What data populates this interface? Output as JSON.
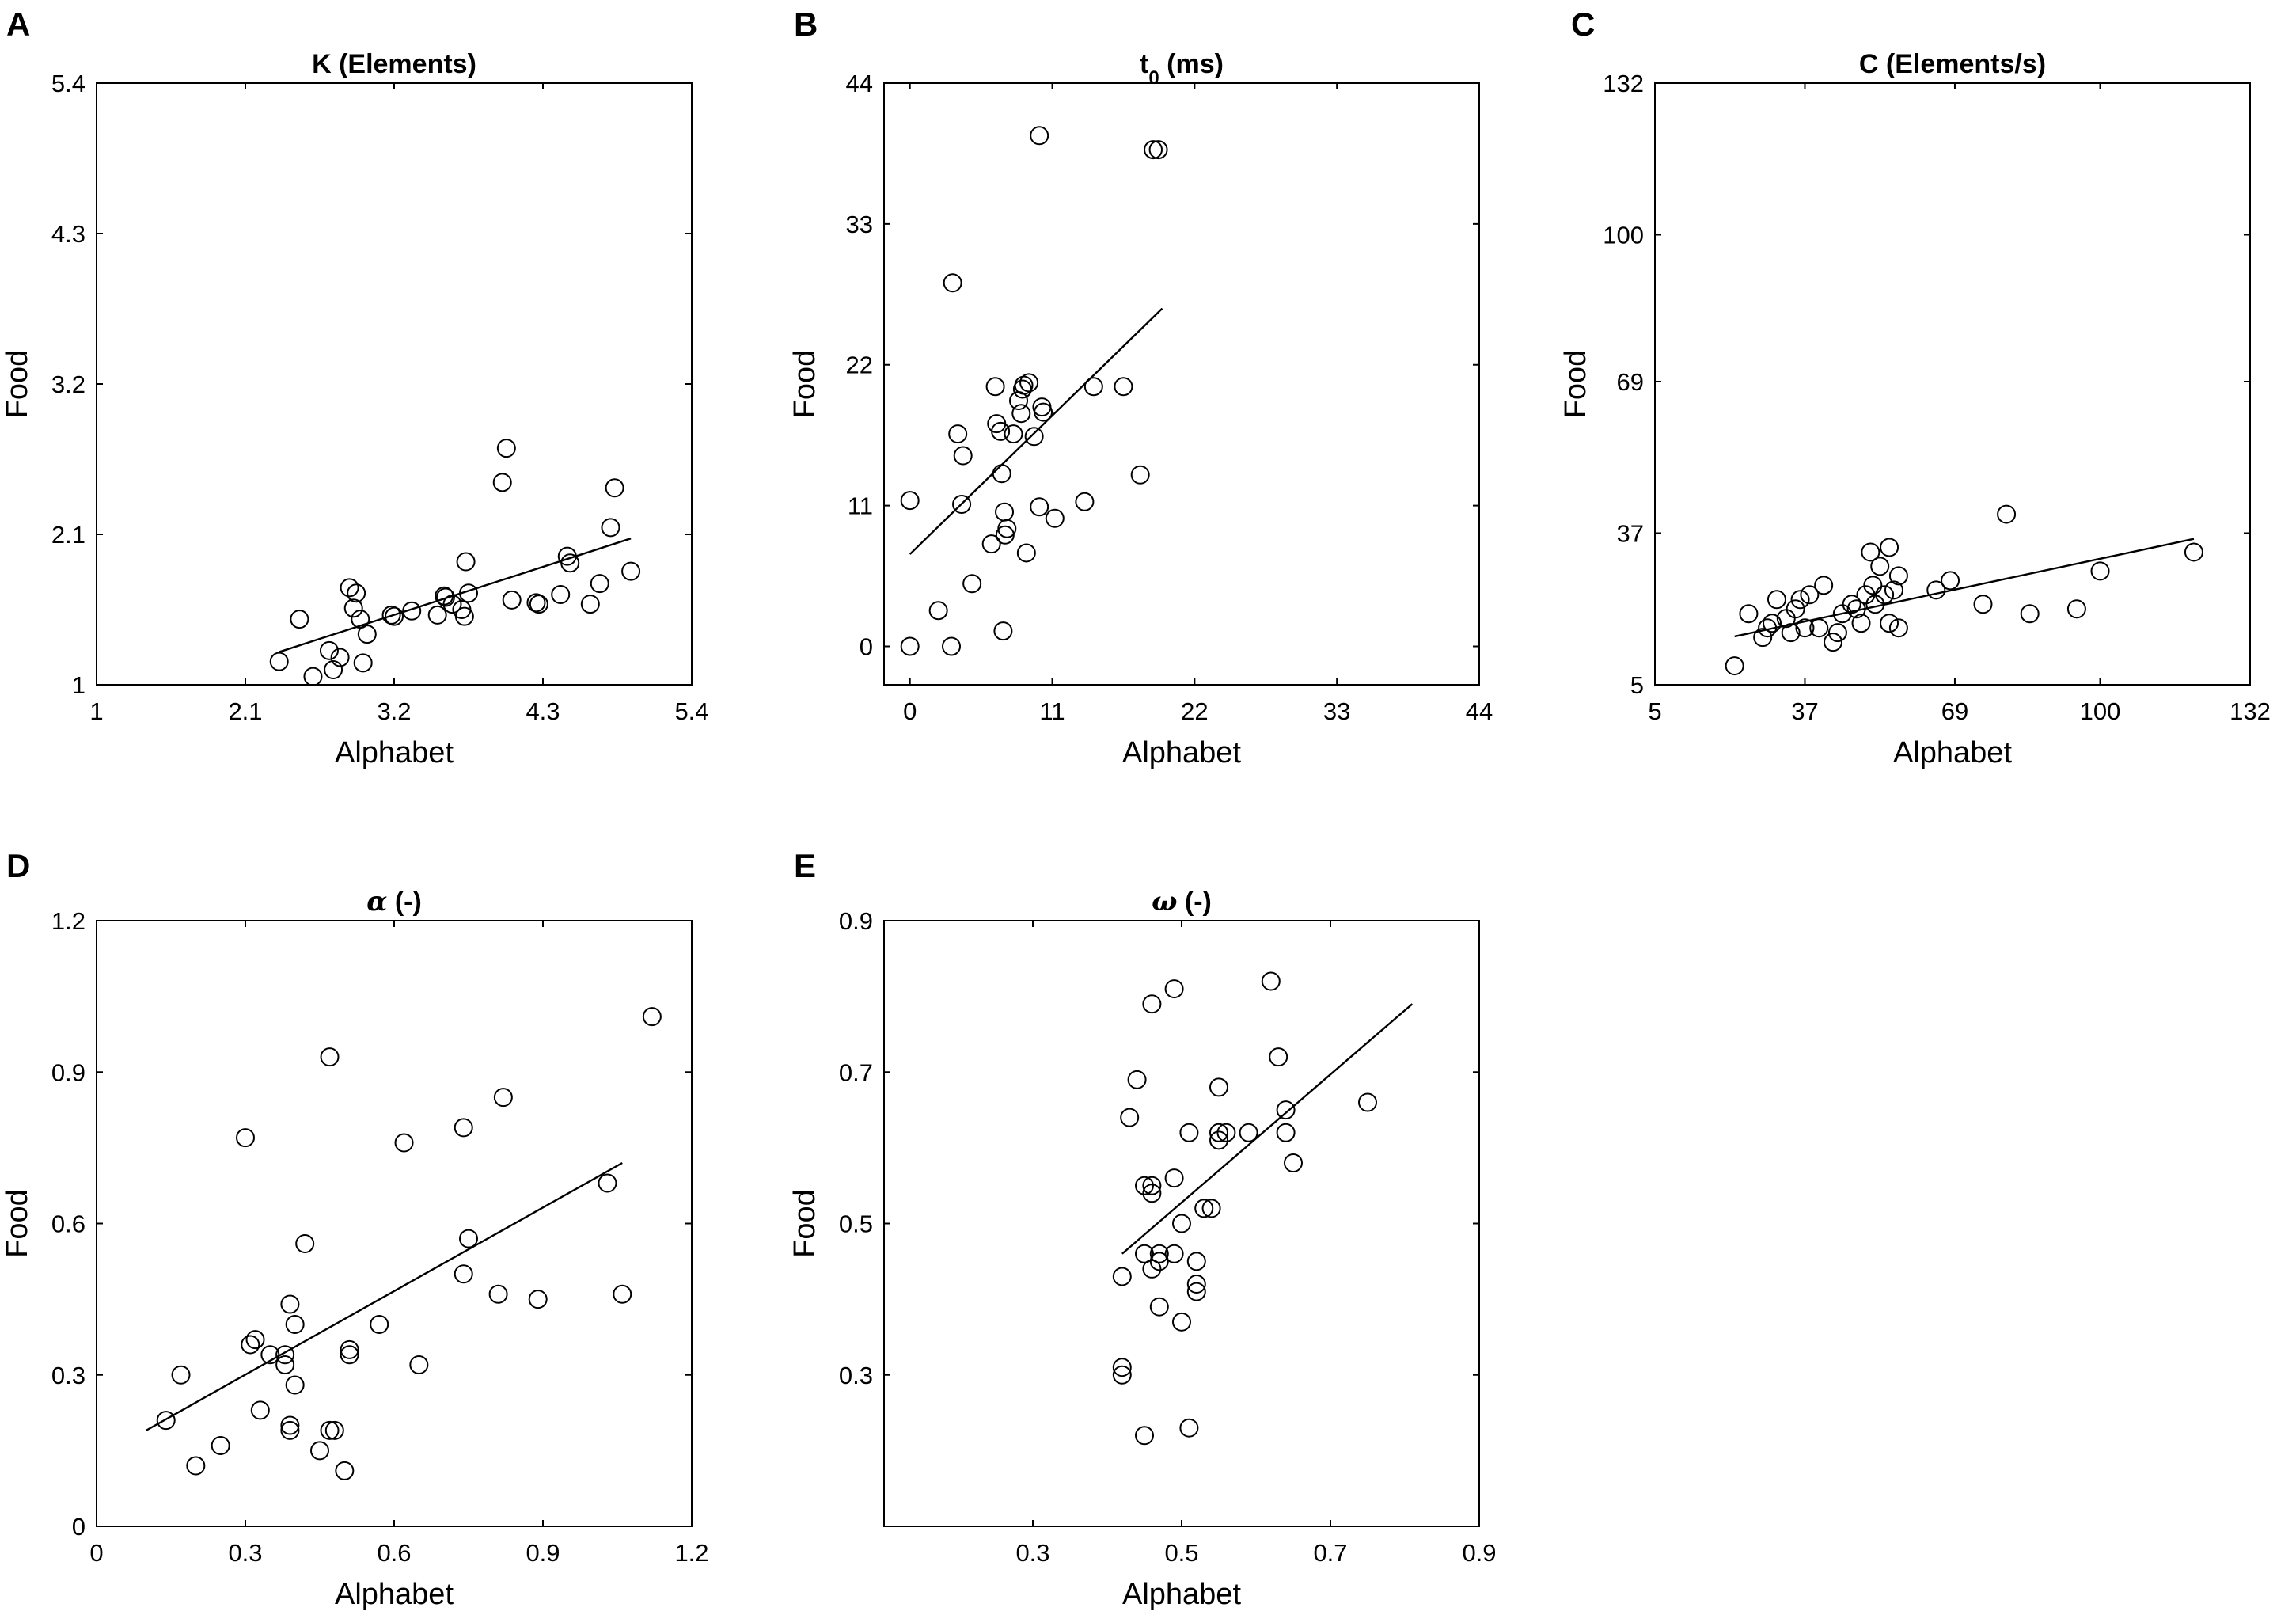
{
  "chart_data": [
    {
      "id": "A",
      "type": "scatter",
      "panel_label": "A",
      "title": "K (Elements)",
      "title_italic": false,
      "xlabel": "Alphabet",
      "ylabel": "Food",
      "xlim": [
        1,
        5.4
      ],
      "ylim": [
        1,
        5.4
      ],
      "xticks": [
        1,
        2.1,
        3.2,
        4.3,
        5.4
      ],
      "yticks": [
        1,
        2.1,
        3.2,
        4.3,
        5.4
      ],
      "xtick_labels": [
        "1",
        "2.1",
        "3.2",
        "4.3",
        "5.4"
      ],
      "ytick_labels": [
        "1",
        "2.1",
        "3.2",
        "4.3",
        "5.4"
      ],
      "fit_line": [
        [
          2.35,
          1.24
        ],
        [
          4.95,
          2.07
        ]
      ],
      "x": [
        2.35,
        2.5,
        2.6,
        2.72,
        2.75,
        2.8,
        2.87,
        2.9,
        2.92,
        2.95,
        2.97,
        3.0,
        3.18,
        3.2,
        3.33,
        3.52,
        3.57,
        3.58,
        3.63,
        3.7,
        3.72,
        3.73,
        3.75,
        4.0,
        4.03,
        4.07,
        4.25,
        4.27,
        4.43,
        4.48,
        4.5,
        4.65,
        4.72,
        4.8,
        4.83,
        4.95
      ],
      "y": [
        1.17,
        1.48,
        1.06,
        1.25,
        1.11,
        1.2,
        1.71,
        1.56,
        1.67,
        1.48,
        1.16,
        1.37,
        1.51,
        1.5,
        1.54,
        1.51,
        1.65,
        1.64,
        1.59,
        1.55,
        1.5,
        1.9,
        1.67,
        2.48,
        2.73,
        1.62,
        1.6,
        1.59,
        1.66,
        1.94,
        1.89,
        1.59,
        1.74,
        2.15,
        2.44,
        1.83
      ]
    },
    {
      "id": "B",
      "type": "scatter",
      "panel_label": "B",
      "title": "t0 (ms)",
      "title_main": "t",
      "title_sub": "0",
      "title_rest": " (ms)",
      "title_italic": false,
      "xlabel": "Alphabet",
      "ylabel": "Food",
      "xlim": [
        -2,
        44
      ],
      "ylim": [
        -3,
        44
      ],
      "xticks": [
        0,
        11,
        22,
        33,
        44
      ],
      "yticks": [
        0,
        11,
        22,
        33,
        44
      ],
      "xtick_labels": [
        "0",
        "11",
        "22",
        "33",
        "44"
      ],
      "ytick_labels": [
        "0",
        "11",
        "22",
        "33",
        "44"
      ],
      "fit_line": [
        [
          0,
          7.2
        ],
        [
          19.5,
          26.4
        ]
      ],
      "x": [
        0,
        0,
        2.2,
        3.2,
        3.3,
        3.7,
        4.0,
        4.1,
        4.8,
        6.3,
        6.6,
        6.7,
        7.0,
        7.1,
        7.2,
        7.3,
        7.35,
        7.5,
        8.0,
        8.4,
        8.6,
        8.7,
        8.8,
        9.0,
        9.2,
        9.6,
        10.0,
        10.0,
        10.2,
        10.3,
        11.2,
        13.5,
        14.2,
        16.5,
        17.8,
        18.8,
        19.2
      ],
      "y": [
        0,
        11.4,
        2.8,
        0,
        28.4,
        16.6,
        11.1,
        14.9,
        4.9,
        8.0,
        20.3,
        17.4,
        16.8,
        13.5,
        1.2,
        10.5,
        8.7,
        9.2,
        16.6,
        19.2,
        18.2,
        20.1,
        20.4,
        7.3,
        20.6,
        16.4,
        39.9,
        10.9,
        18.7,
        18.3,
        10.0,
        11.3,
        20.3,
        20.3,
        13.4,
        38.8,
        38.8
      ]
    },
    {
      "id": "C",
      "type": "scatter",
      "panel_label": "C",
      "title": "C (Elements/s)",
      "title_italic": false,
      "xlabel": "Alphabet",
      "ylabel": "Food",
      "xlim": [
        5,
        132
      ],
      "ylim": [
        5,
        132
      ],
      "xticks": [
        5,
        37,
        69,
        100,
        132
      ],
      "yticks": [
        5,
        37,
        69,
        100,
        132
      ],
      "xtick_labels": [
        "5",
        "37",
        "69",
        "100",
        "132"
      ],
      "ytick_labels": [
        "5",
        "37",
        "69",
        "100",
        "132"
      ],
      "fit_line": [
        [
          22,
          15.2
        ],
        [
          120,
          35.8
        ]
      ],
      "x": [
        22,
        25,
        28,
        29,
        30,
        31,
        33,
        34,
        35,
        36,
        37,
        38,
        40,
        41,
        43,
        44,
        45,
        47,
        48,
        49,
        50,
        51,
        51.5,
        52,
        53,
        54,
        55,
        55,
        56,
        57,
        57,
        65,
        68,
        75,
        80,
        85,
        95,
        100,
        120
      ],
      "y": [
        9,
        20,
        15,
        17,
        18,
        23,
        19,
        16,
        21,
        23,
        17,
        24,
        17,
        26,
        14,
        16,
        20,
        22,
        21,
        18,
        24,
        33,
        26,
        22,
        30,
        24,
        34,
        18,
        25,
        28,
        17,
        25,
        27,
        22,
        41,
        20,
        21,
        29,
        33
      ]
    },
    {
      "id": "D",
      "type": "scatter",
      "panel_label": "D",
      "title": "α (-)",
      "title_main": "α",
      "title_rest": " (-)",
      "title_italic": true,
      "xlabel": "Alphabet",
      "ylabel": "Food",
      "xlim": [
        0,
        1.2
      ],
      "ylim": [
        0,
        1.2
      ],
      "xticks": [
        0,
        0.3,
        0.6,
        0.9,
        1.2
      ],
      "yticks": [
        0,
        0.3,
        0.6,
        0.9,
        1.2
      ],
      "xtick_labels": [
        "0",
        "0.3",
        "0.6",
        "0.9",
        "1.2"
      ],
      "ytick_labels": [
        "0",
        "0.3",
        "0.6",
        "0.9",
        "1.2"
      ],
      "fit_line": [
        [
          0.1,
          0.19
        ],
        [
          1.06,
          0.72
        ]
      ],
      "x": [
        0.14,
        0.17,
        0.2,
        0.25,
        0.3,
        0.31,
        0.32,
        0.33,
        0.35,
        0.38,
        0.38,
        0.39,
        0.39,
        0.39,
        0.4,
        0.4,
        0.42,
        0.45,
        0.47,
        0.47,
        0.48,
        0.5,
        0.51,
        0.51,
        0.57,
        0.62,
        0.65,
        0.74,
        0.74,
        0.75,
        0.81,
        0.82,
        0.89,
        1.03,
        1.06,
        1.12
      ],
      "y": [
        0.21,
        0.3,
        0.12,
        0.16,
        0.77,
        0.36,
        0.37,
        0.23,
        0.34,
        0.32,
        0.34,
        0.2,
        0.19,
        0.44,
        0.4,
        0.28,
        0.56,
        0.15,
        0.93,
        0.19,
        0.19,
        0.11,
        0.35,
        0.34,
        0.4,
        0.76,
        0.32,
        0.79,
        0.5,
        0.57,
        0.46,
        0.85,
        0.45,
        0.68,
        0.46,
        1.01
      ]
    },
    {
      "id": "E",
      "type": "scatter",
      "panel_label": "E",
      "title": "ω (-)",
      "title_main": "ω",
      "title_rest": " (-)",
      "title_italic": true,
      "xlabel": "Alphabet",
      "ylabel": "Food",
      "xlim": [
        0.1,
        0.9
      ],
      "ylim": [
        0.1,
        0.9
      ],
      "xticks": [
        0.3,
        0.5,
        0.7,
        0.9
      ],
      "yticks": [
        0.3,
        0.5,
        0.7,
        0.9
      ],
      "xtick_labels": [
        "0.3",
        "0.5",
        "0.7",
        "0.9"
      ],
      "ytick_labels": [
        "0.3",
        "0.5",
        "0.7",
        "0.9"
      ],
      "fit_line": [
        [
          0.42,
          0.46
        ],
        [
          0.81,
          0.79
        ]
      ],
      "x": [
        0.42,
        0.42,
        0.42,
        0.43,
        0.44,
        0.45,
        0.45,
        0.45,
        0.46,
        0.46,
        0.46,
        0.46,
        0.47,
        0.47,
        0.47,
        0.49,
        0.49,
        0.49,
        0.5,
        0.5,
        0.51,
        0.51,
        0.52,
        0.52,
        0.52,
        0.53,
        0.54,
        0.55,
        0.55,
        0.55,
        0.56,
        0.59,
        0.62,
        0.63,
        0.64,
        0.64,
        0.65,
        0.75
      ],
      "y": [
        0.43,
        0.31,
        0.3,
        0.64,
        0.69,
        0.22,
        0.55,
        0.46,
        0.79,
        0.55,
        0.54,
        0.44,
        0.45,
        0.39,
        0.46,
        0.81,
        0.56,
        0.46,
        0.37,
        0.5,
        0.62,
        0.23,
        0.45,
        0.41,
        0.42,
        0.52,
        0.52,
        0.68,
        0.61,
        0.62,
        0.62,
        0.62,
        0.82,
        0.72,
        0.62,
        0.65,
        0.58,
        0.66
      ]
    }
  ]
}
